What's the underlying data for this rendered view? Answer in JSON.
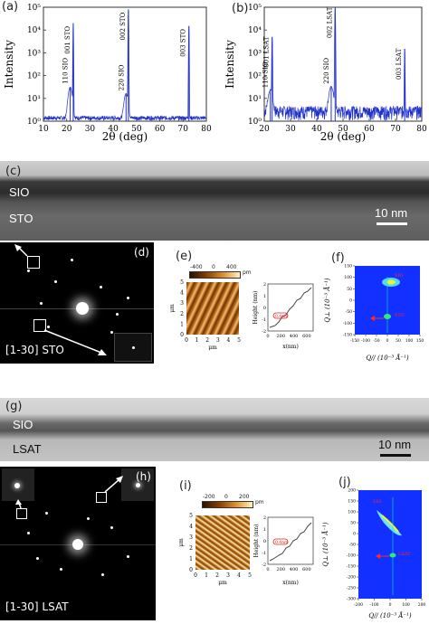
{
  "panels": {
    "a": {
      "label": "(a)",
      "xlabel": "2θ (deg)",
      "ylabel": "Intensity",
      "xticks": [
        "10",
        "20",
        "30",
        "40",
        "50",
        "60",
        "70",
        "80"
      ],
      "yticks": [
        "10⁰",
        "10¹",
        "10²",
        "10³",
        "10⁴",
        "10⁵"
      ],
      "peaks": [
        "110 SIO",
        "001 STO",
        "220 SIO",
        "002 STO",
        "003 STO"
      ]
    },
    "b": {
      "label": "(b)",
      "xlabel": "2θ (deg)",
      "ylabel": "Intensity",
      "xticks": [
        "20",
        "30",
        "40",
        "50",
        "60",
        "70",
        "80"
      ],
      "yticks": [
        "10⁰",
        "10¹",
        "10²",
        "10³",
        "10⁴",
        "10⁵"
      ],
      "peaks": [
        "110 SIO",
        "001 LSAT",
        "220 SIO",
        "002 LSAT",
        "003 LSAT"
      ]
    },
    "c": {
      "label": "(c)",
      "top": "SIO",
      "bottom": "STO",
      "scale": "10 nm"
    },
    "d": {
      "label": "(d)",
      "caption": "[1-30] STO"
    },
    "e": {
      "label": "(e)",
      "colorbar_ticks": [
        "-400",
        "0",
        "400"
      ],
      "colorbar_unit": "pm",
      "xlabel": "μm",
      "ylabel": "μm",
      "xticks": [
        "0",
        "1",
        "2",
        "3",
        "4",
        "5"
      ],
      "yticks": [
        "0",
        "1",
        "2",
        "3",
        "4",
        "5"
      ],
      "profile": {
        "xlabel": "x(nm)",
        "ylabel": "Height (nm)",
        "xticks": [
          "0",
          "200",
          "400",
          "600"
        ],
        "yticks": [
          "-2",
          "-1",
          "0",
          "1",
          "2"
        ],
        "step": "0.4nm"
      }
    },
    "f": {
      "label": "(f)",
      "xlabel": "Q// (10⁻³ Å⁻¹)",
      "ylabel": "Q⊥ (10⁻³ Å⁻¹)",
      "xticks": [
        "-150",
        "-100",
        "-50",
        "0",
        "50",
        "100",
        "150"
      ],
      "yticks": [
        "-150",
        "-100",
        "-50",
        "0",
        "50",
        "100",
        "150"
      ],
      "annot_top": "SIO",
      "annot_mid": "STO"
    },
    "g": {
      "label": "(g)",
      "top": "SIO",
      "bottom": "LSAT",
      "scale": "10 nm"
    },
    "h": {
      "label": "(h)",
      "caption": "[1-30] LSAT"
    },
    "i": {
      "label": "(i)",
      "colorbar_ticks": [
        "-200",
        "0",
        "200"
      ],
      "colorbar_unit": "pm",
      "xlabel": "μm",
      "ylabel": "μm",
      "xticks": [
        "0",
        "1",
        "2",
        "3",
        "4",
        "5"
      ],
      "yticks": [
        "0",
        "1",
        "2",
        "3",
        "4",
        "5"
      ],
      "profile": {
        "xlabel": "x(nm)",
        "ylabel": "Height (nm)",
        "xticks": [
          "0",
          "200",
          "400",
          "600"
        ],
        "yticks": [
          "-2",
          "-1",
          "0",
          "1",
          "2"
        ],
        "step": "0.4nm"
      }
    },
    "j": {
      "label": "(j)",
      "xlabel": "Q// (10⁻³ Å⁻¹)",
      "ylabel": "Q⊥ (10⁻³ Å⁻¹)",
      "xticks": [
        "-200",
        "-100",
        "0",
        "100",
        "200"
      ],
      "yticks": [
        "-300",
        "-250",
        "-200",
        "-150",
        "-100",
        "-50",
        "0",
        "50",
        "100",
        "150",
        "200"
      ],
      "annot_top": "SIO",
      "annot_mid": "LSAT"
    }
  },
  "chart_data": [
    {
      "type": "line",
      "panel": "a",
      "xlabel": "2θ (deg)",
      "ylabel": "Intensity",
      "xlim": [
        10,
        80
      ],
      "ylim": [
        1,
        100000
      ],
      "yscale": "log",
      "peaks": [
        {
          "x": 21.5,
          "y": 30,
          "label": "110 SIO"
        },
        {
          "x": 22.8,
          "y": 20000,
          "label": "001 STO"
        },
        {
          "x": 45.5,
          "y": 15,
          "label": "220 SIO"
        },
        {
          "x": 46.5,
          "y": 80000,
          "label": "002 STO"
        },
        {
          "x": 72.5,
          "y": 15000,
          "label": "003 STO"
        }
      ]
    },
    {
      "type": "line",
      "panel": "b",
      "xlabel": "2θ (deg)",
      "ylabel": "Intensity",
      "xlim": [
        20,
        80
      ],
      "ylim": [
        1,
        100000
      ],
      "yscale": "log",
      "peaks": [
        {
          "x": 22.3,
          "y": 20,
          "label": "110 SIO"
        },
        {
          "x": 23.0,
          "y": 5000,
          "label": "001 LSAT"
        },
        {
          "x": 45.5,
          "y": 30,
          "label": "220 SIO"
        },
        {
          "x": 47.0,
          "y": 100000,
          "label": "002 LSAT"
        },
        {
          "x": 73.5,
          "y": 1500,
          "label": "003 LSAT"
        }
      ]
    }
  ],
  "colors": {
    "xrd_line": "#2233cc",
    "rsm_bg": "#1230ff",
    "rsm_annot": "#ff2a2a",
    "afm_cmap": [
      "#2a1400",
      "#8a3d00",
      "#e09030",
      "#fff3c0"
    ]
  }
}
